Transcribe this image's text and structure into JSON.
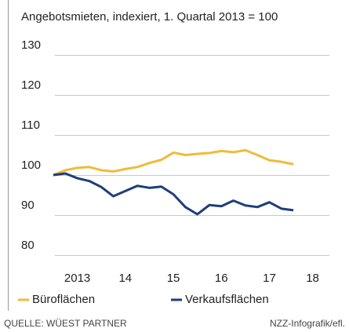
{
  "chart_data": {
    "type": "line",
    "title": "Angebotsmieten, indexiert, 1. Quartal 2013 = 100",
    "x": [
      2013,
      2013.25,
      2013.5,
      2013.75,
      2014,
      2014.25,
      2014.5,
      2014.75,
      2015,
      2015.25,
      2015.5,
      2015.75,
      2016,
      2016.25,
      2016.5,
      2016.75,
      2017,
      2017.25,
      2017.5,
      2017.75,
      2018
    ],
    "series": [
      {
        "name": "Büroflächen",
        "color": "#f0bb38",
        "values": [
          100,
          101.2,
          101.8,
          102,
          101.2,
          100.9,
          101.5,
          102,
          103,
          103.8,
          105.6,
          105,
          105.3,
          105.5,
          106,
          105.7,
          106.2,
          105,
          103.7,
          103.3,
          102.7
        ]
      },
      {
        "name": "Verkaufsflächen",
        "color": "#1f3e78",
        "values": [
          100,
          100.4,
          99.2,
          98.5,
          97,
          94.7,
          96,
          97.3,
          96.8,
          97.1,
          95.2,
          92,
          90.2,
          92.5,
          92.2,
          93.6,
          92.4,
          92,
          93.2,
          91.6,
          91.2
        ]
      }
    ],
    "xlim": [
      2013,
      2018.75
    ],
    "xticks": [
      {
        "value": 2013.5,
        "label": "2013"
      },
      {
        "value": 2014.5,
        "label": "14"
      },
      {
        "value": 2015.5,
        "label": "15"
      },
      {
        "value": 2016.5,
        "label": "16"
      },
      {
        "value": 2017.5,
        "label": "17"
      },
      {
        "value": 2018.4,
        "label": "18"
      }
    ],
    "ylim": [
      80,
      130
    ],
    "yticks": [
      80,
      90,
      100,
      110,
      120,
      130
    ],
    "grid": true,
    "source": "QUELLE: WÜEST PARTNER",
    "credit": "NZZ-Infografik/efl."
  }
}
